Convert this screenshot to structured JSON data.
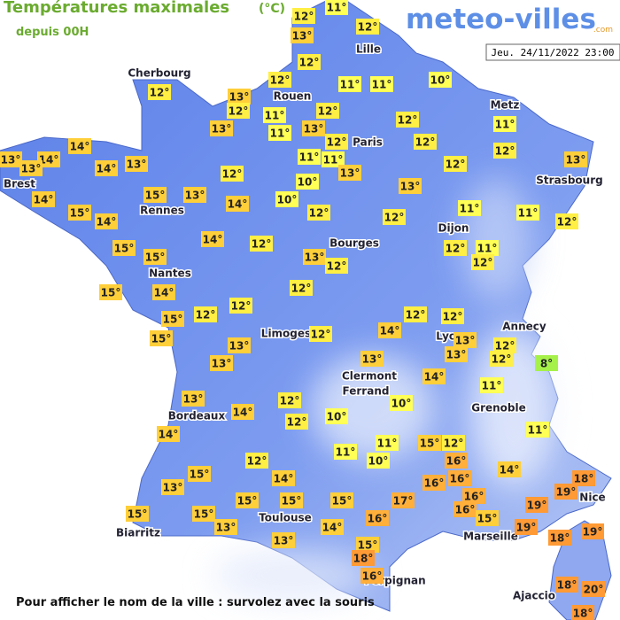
{
  "header": {
    "title": "Températures maximales",
    "unit": "(°C)",
    "subtitle": "depuis 00H"
  },
  "logo": {
    "name": "meteo-villes",
    "tld": ".com"
  },
  "date": "Jeu. 24/11/2022 23:00",
  "footer": "Pour afficher le nom de la ville : survolez avec la souris",
  "cities": [
    "Cherbourg",
    "Lille",
    "Rouen",
    "Paris",
    "Metz",
    "Strasbourg",
    "Brest",
    "Rennes",
    "Nantes",
    "Bourges",
    "Dijon",
    "Limoges",
    "Annecy",
    "Lyon",
    "Clermont",
    "Ferrand",
    "Grenoble",
    "Bordeaux",
    "Nice",
    "Toulouse",
    "Marseille",
    "Biarritz",
    "Perpignan",
    "Ajaccio"
  ],
  "temps": [
    "12°",
    "11°",
    "13°",
    "12°",
    "12°",
    "12°",
    "12°",
    "11°",
    "11°",
    "10°",
    "13°",
    "12°",
    "11°",
    "13°",
    "12°",
    "12°",
    "11°",
    "13°",
    "11°",
    "12°",
    "12°",
    "12°",
    "14°",
    "13°",
    "14°",
    "13°",
    "14°",
    "13°",
    "11°",
    "11°",
    "12°",
    "13°",
    "13°",
    "12°",
    "10°",
    "13°",
    "14°",
    "15°",
    "13°",
    "14°",
    "10°",
    "15°",
    "14°",
    "12°",
    "12°",
    "11°",
    "11°",
    "12°",
    "15°",
    "15°",
    "14°",
    "12°",
    "13°",
    "12°",
    "12°",
    "11°",
    "12°",
    "15°",
    "14°",
    "12°",
    "12°",
    "12°",
    "15°",
    "15°",
    "13°",
    "13°",
    "12°",
    "12°",
    "13°",
    "12°",
    "13°",
    "14°",
    "12°",
    "12°",
    "8°",
    "13°",
    "14°",
    "11°",
    "13°",
    "14°",
    "12°",
    "12°",
    "10°",
    "10°",
    "14°",
    "11°",
    "11°",
    "10°",
    "15°",
    "12°",
    "11°",
    "12°",
    "16°",
    "14°",
    "15°",
    "14°",
    "16°",
    "16°",
    "18°",
    "13°",
    "15°",
    "15°",
    "15°",
    "17°",
    "16°",
    "19°",
    "16°",
    "19°",
    "15°",
    "15°",
    "13°",
    "16°",
    "15°",
    "19°",
    "14°",
    "18°",
    "19°",
    "13°",
    "15°",
    "18°",
    "16°",
    "18°",
    "20°",
    "18°"
  ]
}
